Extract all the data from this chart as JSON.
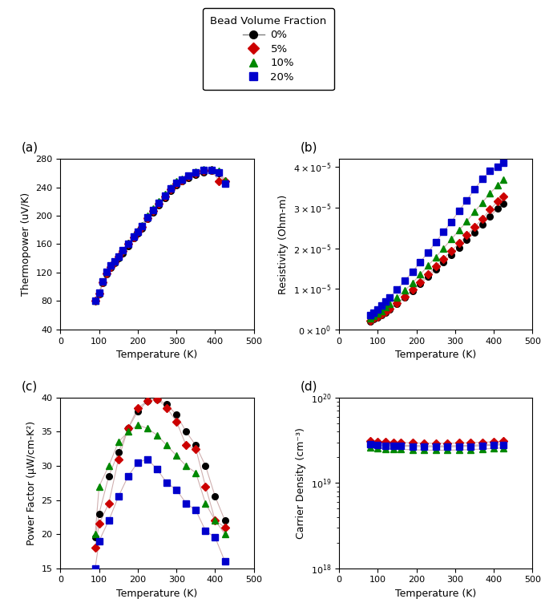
{
  "legend_title": "Bead Volume Fraction",
  "series": [
    "0%",
    "5%",
    "10%",
    "20%"
  ],
  "colors": [
    "black",
    "#cc0000",
    "#008800",
    "#0000cc"
  ],
  "markers": [
    "o",
    "D",
    "^",
    "s"
  ],
  "thermopower": {
    "T": [
      90,
      100,
      110,
      120,
      130,
      140,
      150,
      160,
      175,
      190,
      200,
      210,
      225,
      240,
      255,
      270,
      285,
      300,
      315,
      330,
      350,
      370,
      390,
      410,
      425
    ],
    "s0": [
      80,
      90,
      105,
      118,
      127,
      133,
      140,
      147,
      157,
      168,
      175,
      182,
      195,
      205,
      215,
      225,
      235,
      243,
      248,
      253,
      258,
      261,
      263,
      260,
      247
    ],
    "s5": [
      80,
      91,
      106,
      119,
      128,
      135,
      142,
      150,
      160,
      170,
      177,
      184,
      197,
      207,
      217,
      227,
      237,
      245,
      250,
      255,
      260,
      263,
      264,
      249,
      248
    ],
    "s10": [
      81,
      92,
      107,
      121,
      130,
      136,
      143,
      151,
      162,
      172,
      179,
      186,
      200,
      210,
      220,
      230,
      240,
      248,
      252,
      257,
      262,
      265,
      266,
      263,
      250
    ],
    "s20": [
      81,
      92,
      107,
      121,
      130,
      136,
      143,
      151,
      161,
      171,
      178,
      185,
      198,
      208,
      218,
      228,
      238,
      246,
      251,
      256,
      261,
      264,
      264,
      261,
      245
    ]
  },
  "resistivity": {
    "T": [
      80,
      90,
      100,
      110,
      120,
      130,
      150,
      170,
      190,
      210,
      230,
      250,
      270,
      290,
      310,
      330,
      350,
      370,
      390,
      410,
      425
    ],
    "r0": [
      2e-06,
      2.5e-06,
      3e-06,
      3.6e-06,
      4.2e-06,
      4.9e-06,
      6.2e-06,
      7.8e-06,
      9.5e-06,
      1.12e-05,
      1.3e-05,
      1.48e-05,
      1.66e-05,
      1.84e-05,
      2.02e-05,
      2.2e-05,
      2.38e-05,
      2.58e-05,
      2.78e-05,
      2.98e-05,
      3.1e-05
    ],
    "r5": [
      2.2e-06,
      2.7e-06,
      3.2e-06,
      3.8e-06,
      4.4e-06,
      5.1e-06,
      6.5e-06,
      8.1e-06,
      9.8e-06,
      1.16e-05,
      1.35e-05,
      1.55e-05,
      1.74e-05,
      1.93e-05,
      2.12e-05,
      2.32e-05,
      2.52e-05,
      2.72e-05,
      2.95e-05,
      3.15e-05,
      3.28e-05
    ],
    "r10": [
      2.8e-06,
      3.3e-06,
      3.9e-06,
      4.6e-06,
      5.4e-06,
      6.2e-06,
      7.8e-06,
      9.6e-06,
      1.15e-05,
      1.35e-05,
      1.57e-05,
      1.78e-05,
      2e-05,
      2.22e-05,
      2.44e-05,
      2.66e-05,
      2.9e-05,
      3.12e-05,
      3.35e-05,
      3.55e-05,
      3.68e-05
    ],
    "r20": [
      3.5e-06,
      4.2e-06,
      5e-06,
      5.9e-06,
      6.8e-06,
      7.8e-06,
      9.8e-06,
      1.2e-05,
      1.42e-05,
      1.66e-05,
      1.9e-05,
      2.15e-05,
      2.4e-05,
      2.65e-05,
      2.92e-05,
      3.18e-05,
      3.45e-05,
      3.7e-05,
      3.9e-05,
      4e-05,
      4.1e-05
    ]
  },
  "power_factor": {
    "T": [
      90,
      100,
      125,
      150,
      175,
      200,
      225,
      250,
      275,
      300,
      325,
      350,
      375,
      400,
      425
    ],
    "p0": [
      19.5,
      23.0,
      28.5,
      32.0,
      35.5,
      38.0,
      39.5,
      39.8,
      39.0,
      37.5,
      35.0,
      33.0,
      30.0,
      25.5,
      22.0
    ],
    "p5": [
      18.0,
      21.5,
      24.5,
      31.0,
      35.5,
      38.5,
      39.5,
      39.8,
      38.5,
      36.5,
      33.0,
      32.5,
      27.0,
      22.0,
      21.0
    ],
    "p10": [
      20.0,
      27.0,
      30.0,
      33.5,
      35.0,
      36.0,
      35.5,
      34.5,
      33.0,
      31.5,
      30.0,
      29.0,
      24.5,
      22.0,
      20.0
    ],
    "p20": [
      15.0,
      19.0,
      22.0,
      25.5,
      28.5,
      30.5,
      31.0,
      29.5,
      27.5,
      26.5,
      24.5,
      23.5,
      20.5,
      19.5,
      16.0
    ]
  },
  "carrier_density": {
    "T": [
      80,
      100,
      120,
      140,
      160,
      190,
      220,
      250,
      280,
      310,
      340,
      370,
      400,
      425
    ],
    "n0": [
      2.9e+19,
      2.85e+19,
      2.82e+19,
      2.8e+19,
      2.78e+19,
      2.75e+19,
      2.73e+19,
      2.72e+19,
      2.72e+19,
      2.74e+19,
      2.76e+19,
      2.8e+19,
      2.84e+19,
      2.88e+19
    ],
    "n5": [
      3.1e+19,
      3.05e+19,
      3.02e+19,
      3e+19,
      2.98e+19,
      2.95e+19,
      2.93e+19,
      2.92e+19,
      2.92e+19,
      2.94e+19,
      2.96e+19,
      3e+19,
      3.04e+19,
      3.08e+19
    ],
    "n10": [
      2.6e+19,
      2.55e+19,
      2.52e+19,
      2.5e+19,
      2.48e+19,
      2.45e+19,
      2.43e+19,
      2.42e+19,
      2.42e+19,
      2.44e+19,
      2.46e+19,
      2.5e+19,
      2.54e+19,
      2.58e+19
    ],
    "n20": [
      2.82e+19,
      2.78e+19,
      2.75e+19,
      2.73e+19,
      2.71e+19,
      2.68e+19,
      2.66e+19,
      2.65e+19,
      2.65e+19,
      2.67e+19,
      2.69e+19,
      2.73e+19,
      2.77e+19,
      2.81e+19
    ]
  },
  "panel_labels": [
    "(a)",
    "(b)",
    "(c)",
    "(d)"
  ],
  "xlim": [
    0,
    500
  ],
  "xticks": [
    0,
    100,
    200,
    300,
    400,
    500
  ],
  "thermopower_ylim": [
    40,
    280
  ],
  "thermopower_yticks": [
    40,
    80,
    120,
    160,
    200,
    240,
    280
  ],
  "resistivity_ylim": [
    0,
    4.2e-05
  ],
  "resistivity_yticks": [
    0,
    1e-05,
    2e-05,
    3e-05,
    4e-05
  ],
  "power_factor_ylim": [
    15,
    40
  ],
  "power_factor_yticks": [
    15,
    20,
    25,
    30,
    35,
    40
  ],
  "carrier_density_ylim": [
    1e+18,
    1e+20
  ],
  "xlabel": "Temperature (K)",
  "ylabel_a": "Thermopower (uV/K)",
  "ylabel_b": "Resistivity (Ohm-m)",
  "ylabel_c": "Power Factor (μW/cm-K²)",
  "ylabel_d": "Carrier Density (cm⁻³)",
  "line_color": "#d0b0b0",
  "marker_size": 5.5,
  "line_width": 0.8
}
